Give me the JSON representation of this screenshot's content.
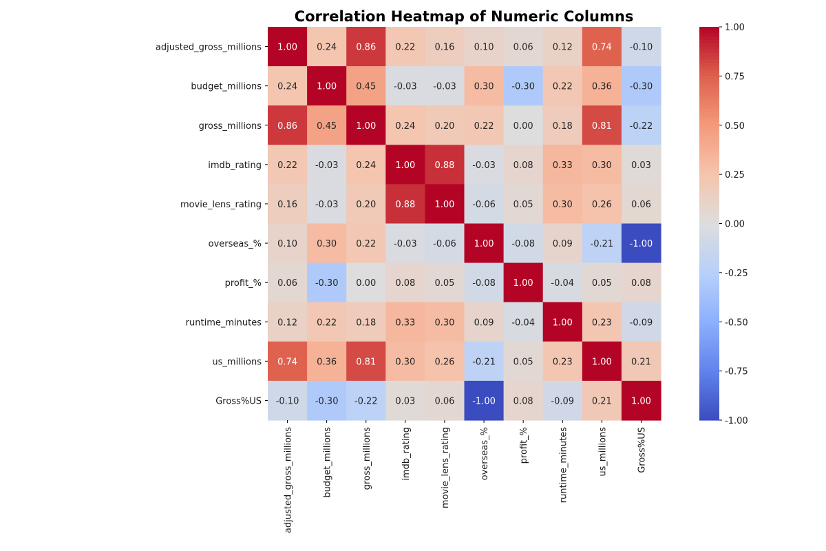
{
  "chart_data": {
    "type": "heatmap",
    "title": "Correlation Heatmap of Numeric Columns",
    "xlabel": "",
    "ylabel": "",
    "colormap": "coolwarm",
    "colors": {
      "low": "#3b4cc0",
      "mid": "#dddddd",
      "high": "#b40426"
    },
    "vmin": -1.0,
    "vmax": 1.0,
    "colorbar_ticks": [
      "1.00",
      "0.75",
      "0.50",
      "0.25",
      "0.00",
      "-0.25",
      "-0.50",
      "-0.75",
      "-1.00"
    ],
    "row_labels": [
      "adjusted_gross_millions",
      "budget_millions",
      "gross_millions",
      "imdb_rating",
      "movie_lens_rating",
      "overseas_%",
      "profit_%",
      "runtime_minutes",
      "us_millions",
      "Gross%US"
    ],
    "col_labels": [
      "adjusted_gross_millions",
      "budget_millions",
      "gross_millions",
      "imdb_rating",
      "movie_lens_rating",
      "overseas_%",
      "profit_%",
      "runtime_minutes",
      "us_millions",
      "Gross%US"
    ],
    "values": [
      [
        1.0,
        0.24,
        0.86,
        0.22,
        0.16,
        0.1,
        0.06,
        0.12,
        0.74,
        -0.1
      ],
      [
        0.24,
        1.0,
        0.45,
        -0.03,
        -0.03,
        0.3,
        -0.3,
        0.22,
        0.36,
        -0.3
      ],
      [
        0.86,
        0.45,
        1.0,
        0.24,
        0.2,
        0.22,
        0.0,
        0.18,
        0.81,
        -0.22
      ],
      [
        0.22,
        -0.03,
        0.24,
        1.0,
        0.88,
        -0.03,
        0.08,
        0.33,
        0.3,
        0.03
      ],
      [
        0.16,
        -0.03,
        0.2,
        0.88,
        1.0,
        -0.06,
        0.05,
        0.3,
        0.26,
        0.06
      ],
      [
        0.1,
        0.3,
        0.22,
        -0.03,
        -0.06,
        1.0,
        -0.08,
        0.09,
        -0.21,
        -1.0
      ],
      [
        0.06,
        -0.3,
        0.0,
        0.08,
        0.05,
        -0.08,
        1.0,
        -0.04,
        0.05,
        0.08
      ],
      [
        0.12,
        0.22,
        0.18,
        0.33,
        0.3,
        0.09,
        -0.04,
        1.0,
        0.23,
        -0.09
      ],
      [
        0.74,
        0.36,
        0.81,
        0.3,
        0.26,
        -0.21,
        0.05,
        0.23,
        1.0,
        0.21
      ],
      [
        -0.1,
        -0.3,
        -0.22,
        0.03,
        0.06,
        -1.0,
        0.08,
        -0.09,
        0.21,
        1.0
      ]
    ],
    "annotation_format": "0.00"
  }
}
